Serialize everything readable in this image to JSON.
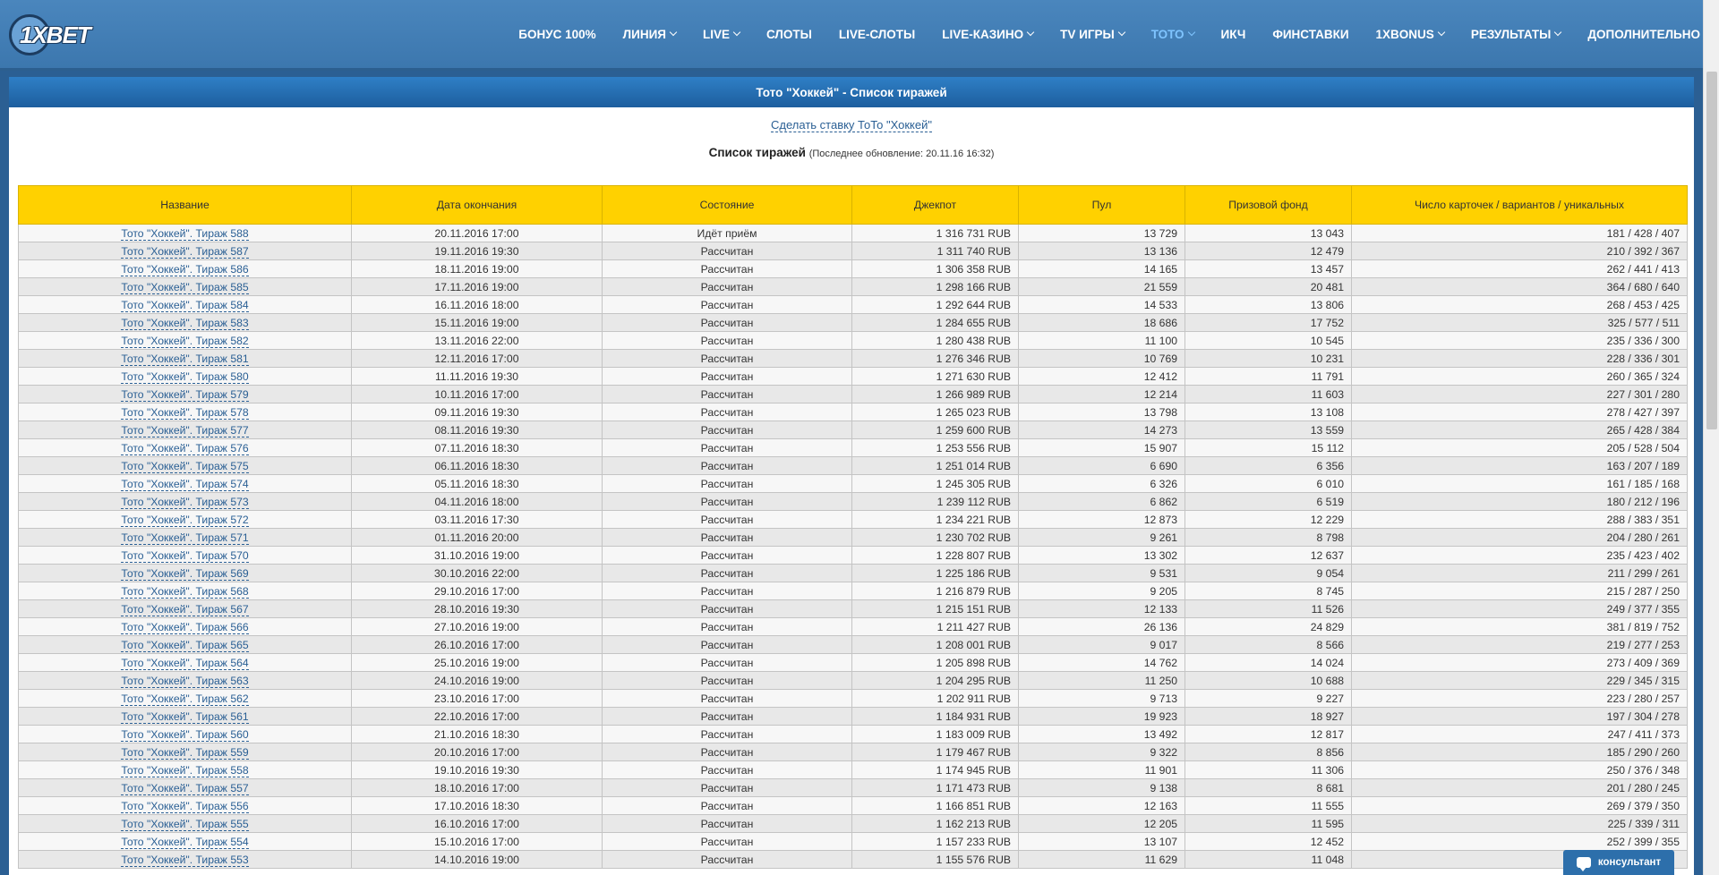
{
  "logo": {
    "text": "1XBET"
  },
  "nav": {
    "items": [
      {
        "label": "БОНУС 100%",
        "dropdown": false,
        "active": false,
        "name": "nav-bonus"
      },
      {
        "label": "ЛИНИЯ",
        "dropdown": true,
        "active": false,
        "name": "nav-line"
      },
      {
        "label": "LIVE",
        "dropdown": true,
        "active": false,
        "name": "nav-live"
      },
      {
        "label": "СЛОТЫ",
        "dropdown": false,
        "active": false,
        "name": "nav-slots"
      },
      {
        "label": "LIVE-СЛОТЫ",
        "dropdown": false,
        "active": false,
        "name": "nav-live-slots"
      },
      {
        "label": "LIVE-КАЗИНО",
        "dropdown": true,
        "active": false,
        "name": "nav-live-casino"
      },
      {
        "label": "TV ИГРЫ",
        "dropdown": true,
        "active": false,
        "name": "nav-tv-games"
      },
      {
        "label": "ТОТО",
        "dropdown": true,
        "active": true,
        "name": "nav-toto"
      },
      {
        "label": "ИКЧ",
        "dropdown": false,
        "active": false,
        "name": "nav-ikch"
      },
      {
        "label": "ФИНСТАВКИ",
        "dropdown": false,
        "active": false,
        "name": "nav-finstavki"
      },
      {
        "label": "1XBONUS",
        "dropdown": true,
        "active": false,
        "name": "nav-1xbonus"
      },
      {
        "label": "РЕЗУЛЬТАТЫ",
        "dropdown": true,
        "active": false,
        "name": "nav-results"
      },
      {
        "label": "ДОПОЛНИТЕЛЬНО",
        "dropdown": true,
        "active": false,
        "name": "nav-more"
      }
    ]
  },
  "panel": {
    "title": "Тото \"Хоккей\" - Список тиражей",
    "bet_link": "Сделать ставку ТоТо \"Хоккей\"",
    "list_title": "Список тиражей",
    "last_update": "(Последнее обновление: 20.11.16 16:32)"
  },
  "table": {
    "headers": [
      "Название",
      "Дата окончания",
      "Состояние",
      "Джекпот",
      "Пул",
      "Призовой фонд",
      "Число карточек / вариантов / уникальных"
    ],
    "rows": [
      [
        "Тото \"Хоккей\". Тираж 588",
        "20.11.2016 17:00",
        "Идёт приём",
        "1 316 731 RUB",
        "13 729",
        "13 043",
        "181 / 428 / 407"
      ],
      [
        "Тото \"Хоккей\". Тираж 587",
        "19.11.2016 19:30",
        "Рассчитан",
        "1 311 740 RUB",
        "13 136",
        "12 479",
        "210 / 392 / 367"
      ],
      [
        "Тото \"Хоккей\". Тираж 586",
        "18.11.2016 19:00",
        "Рассчитан",
        "1 306 358 RUB",
        "14 165",
        "13 457",
        "262 / 441 / 413"
      ],
      [
        "Тото \"Хоккей\". Тираж 585",
        "17.11.2016 19:00",
        "Рассчитан",
        "1 298 166 RUB",
        "21 559",
        "20 481",
        "364 / 680 / 640"
      ],
      [
        "Тото \"Хоккей\". Тираж 584",
        "16.11.2016 18:00",
        "Рассчитан",
        "1 292 644 RUB",
        "14 533",
        "13 806",
        "268 / 453 / 425"
      ],
      [
        "Тото \"Хоккей\". Тираж 583",
        "15.11.2016 19:00",
        "Рассчитан",
        "1 284 655 RUB",
        "18 686",
        "17 752",
        "325 / 577 / 511"
      ],
      [
        "Тото \"Хоккей\". Тираж 582",
        "13.11.2016 22:00",
        "Рассчитан",
        "1 280 438 RUB",
        "11 100",
        "10 545",
        "235 / 336 / 300"
      ],
      [
        "Тото \"Хоккей\". Тираж 581",
        "12.11.2016 17:00",
        "Рассчитан",
        "1 276 346 RUB",
        "10 769",
        "10 231",
        "228 / 336 / 301"
      ],
      [
        "Тото \"Хоккей\". Тираж 580",
        "11.11.2016 19:30",
        "Рассчитан",
        "1 271 630 RUB",
        "12 412",
        "11 791",
        "260 / 365 / 324"
      ],
      [
        "Тото \"Хоккей\". Тираж 579",
        "10.11.2016 17:00",
        "Рассчитан",
        "1 266 989 RUB",
        "12 214",
        "11 603",
        "227 / 301 / 280"
      ],
      [
        "Тото \"Хоккей\". Тираж 578",
        "09.11.2016 19:30",
        "Рассчитан",
        "1 265 023 RUB",
        "13 798",
        "13 108",
        "278 / 427 / 397"
      ],
      [
        "Тото \"Хоккей\". Тираж 577",
        "08.11.2016 19:30",
        "Рассчитан",
        "1 259 600 RUB",
        "14 273",
        "13 559",
        "265 / 428 / 384"
      ],
      [
        "Тото \"Хоккей\". Тираж 576",
        "07.11.2016 18:30",
        "Рассчитан",
        "1 253 556 RUB",
        "15 907",
        "15 112",
        "205 / 528 / 504"
      ],
      [
        "Тото \"Хоккей\". Тираж 575",
        "06.11.2016 18:30",
        "Рассчитан",
        "1 251 014 RUB",
        "6 690",
        "6 356",
        "163 / 207 / 189"
      ],
      [
        "Тото \"Хоккей\". Тираж 574",
        "05.11.2016 18:30",
        "Рассчитан",
        "1 245 305 RUB",
        "6 326",
        "6 010",
        "161 / 185 / 168"
      ],
      [
        "Тото \"Хоккей\". Тираж 573",
        "04.11.2016 18:00",
        "Рассчитан",
        "1 239 112 RUB",
        "6 862",
        "6 519",
        "180 / 212 / 196"
      ],
      [
        "Тото \"Хоккей\". Тираж 572",
        "03.11.2016 17:30",
        "Рассчитан",
        "1 234 221 RUB",
        "12 873",
        "12 229",
        "288 / 383 / 351"
      ],
      [
        "Тото \"Хоккей\". Тираж 571",
        "01.11.2016 20:00",
        "Рассчитан",
        "1 230 702 RUB",
        "9 261",
        "8 798",
        "204 / 280 / 261"
      ],
      [
        "Тото \"Хоккей\". Тираж 570",
        "31.10.2016 19:00",
        "Рассчитан",
        "1 228 807 RUB",
        "13 302",
        "12 637",
        "235 / 423 / 402"
      ],
      [
        "Тото \"Хоккей\". Тираж 569",
        "30.10.2016 22:00",
        "Рассчитан",
        "1 225 186 RUB",
        "9 531",
        "9 054",
        "211 / 299 / 261"
      ],
      [
        "Тото \"Хоккей\". Тираж 568",
        "29.10.2016 17:00",
        "Рассчитан",
        "1 216 879 RUB",
        "9 205",
        "8 745",
        "215 / 287 / 250"
      ],
      [
        "Тото \"Хоккей\". Тираж 567",
        "28.10.2016 19:30",
        "Рассчитан",
        "1 215 151 RUB",
        "12 133",
        "11 526",
        "249 / 377 / 355"
      ],
      [
        "Тото \"Хоккей\". Тираж 566",
        "27.10.2016 19:00",
        "Рассчитан",
        "1 211 427 RUB",
        "26 136",
        "24 829",
        "381 / 819 / 752"
      ],
      [
        "Тото \"Хоккей\". Тираж 565",
        "26.10.2016 17:00",
        "Рассчитан",
        "1 208 001 RUB",
        "9 017",
        "8 566",
        "219 / 277 / 253"
      ],
      [
        "Тото \"Хоккей\". Тираж 564",
        "25.10.2016 19:00",
        "Рассчитан",
        "1 205 898 RUB",
        "14 762",
        "14 024",
        "273 / 409 / 369"
      ],
      [
        "Тото \"Хоккей\". Тираж 563",
        "24.10.2016 19:00",
        "Рассчитан",
        "1 204 295 RUB",
        "11 250",
        "10 688",
        "229 / 345 / 315"
      ],
      [
        "Тото \"Хоккей\". Тираж 562",
        "23.10.2016 17:00",
        "Рассчитан",
        "1 202 911 RUB",
        "9 713",
        "9 227",
        "223 / 280 / 257"
      ],
      [
        "Тото \"Хоккей\". Тираж 561",
        "22.10.2016 17:00",
        "Рассчитан",
        "1 184 931 RUB",
        "19 923",
        "18 927",
        "197 / 304 / 278"
      ],
      [
        "Тото \"Хоккей\". Тираж 560",
        "21.10.2016 18:30",
        "Рассчитан",
        "1 183 009 RUB",
        "13 492",
        "12 817",
        "247 / 411 / 373"
      ],
      [
        "Тото \"Хоккей\". Тираж 559",
        "20.10.2016 17:00",
        "Рассчитан",
        "1 179 467 RUB",
        "9 322",
        "8 856",
        "185 / 290 / 260"
      ],
      [
        "Тото \"Хоккей\". Тираж 558",
        "19.10.2016 19:30",
        "Рассчитан",
        "1 174 945 RUB",
        "11 901",
        "11 306",
        "250 / 376 / 348"
      ],
      [
        "Тото \"Хоккей\". Тираж 557",
        "18.10.2016 17:00",
        "Рассчитан",
        "1 171 473 RUB",
        "9 138",
        "8 681",
        "201 / 280 / 245"
      ],
      [
        "Тото \"Хоккей\". Тираж 556",
        "17.10.2016 18:30",
        "Рассчитан",
        "1 166 851 RUB",
        "12 163",
        "11 555",
        "269 / 379 / 350"
      ],
      [
        "Тото \"Хоккей\". Тираж 555",
        "16.10.2016 17:00",
        "Рассчитан",
        "1 162 213 RUB",
        "12 205",
        "11 595",
        "225 / 339 / 311"
      ],
      [
        "Тото \"Хоккей\". Тираж 554",
        "15.10.2016 17:00",
        "Рассчитан",
        "1 157 233 RUB",
        "13 107",
        "12 452",
        "252 / 399 / 355"
      ],
      [
        "Тото \"Хоккей\". Тираж 553",
        "14.10.2016 19:00",
        "Рассчитан",
        "1 155 576 RUB",
        "11 629",
        "11 048",
        ""
      ]
    ]
  },
  "consultant": {
    "label": "консультант"
  }
}
